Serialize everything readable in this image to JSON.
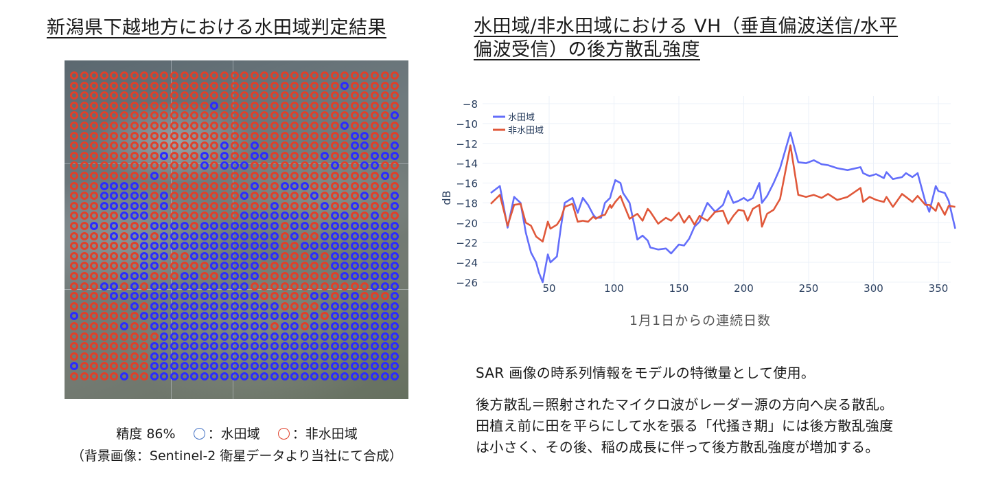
{
  "left_panel": {
    "title": "新潟県下越地方における水田域判定結果",
    "accuracy_label": "精度 86%",
    "legend": [
      {
        "symbol": "blue-circle",
        "color": "#4472c4",
        "label": "：水田域"
      },
      {
        "symbol": "red-circle",
        "color": "#e0402a",
        "label": "：非水田域"
      }
    ],
    "source": "（背景画像：Sentinel-2 衛星データより当社にて合成）",
    "map": {
      "paddy_color": "#2b2bff",
      "non_paddy_color": "#e0402a",
      "cols": 33,
      "rows": [
        "RRRRRRRRRRRRRRRRRRRRRRRRRRRRRRRRR",
        "RRRRRRRRRRRRRRRRRRRRRRRRRRRBRRRRR",
        "RRRRRRRRRRRRRRRRRRRRRRRRRRRRRRRRR",
        "RRRRRRRRRRRRRRBRRRRRRRRRRRRRRRRRR",
        "RRRRRRRRRRRRRRRRRRRRRRRRRRRRRRRRB",
        "RRRRRRRRRRRRRRRRRRRRRRRRRRRBRRRRR",
        "RRRRRRRRRRRRRRRRRRRRRRRRRRRRBBRRR",
        "RRRRRRRRRRRRRRRBRRBRRRRRRRRRBBRRB",
        "RRRRRRRRRBRRRBRBRRBBRRRRRBRRBRBBB",
        "RRRRRRRRRRRRRBRBBBRRRRRRRRBRRBBRR",
        "RRRRRRRRBRRRRRRRRRRRRRRRRRRRRRRBR",
        "RRRBBBBRRRRRRRRRRRBRRBBBRRRRRRRRR",
        "RRRBBBBBRBRRRRRRRBRRRRRRBRRRRBRRB",
        "RRRBBBBBRBRRRRRRRRRRBRRRRBRRBRRRB",
        "RRRRRBBBRRRRRRRRRBBBBBBBRRBBRRBRR",
        "RRBRBRRRBBBBRBBBBBBBBRBBRBBBBBBBB",
        "RRRRBRBBRBBBBBBBBBBBBRBRRBBBBBBBB",
        "RRRRRRRBBBBBBBBBBBBBBRRBBBBBBBBBB",
        "RRRRRRRBBBRRBBBBBBBBBRRRBRBBBBBBB",
        "RRRRRRRBBRRRRRBBBBBRRRRRRRBBBBBBB",
        "RRRRRBBBRRRBBRRBBBBRRRRRRRRBBBBBB",
        "RRRBBRBRBBBBBBBBBBRRRRRRRRRRRRBBB",
        "RRRRBBBBBBBBBBBBBBBRRRRRBBRBBRRRB",
        "RRRRRRBRBBBBBBBBBBBBBRRRRBBBBBBBB",
        "BRRRRRRBBBBBBBBBBBBBBBBRBRBBBBBBB",
        "RRRRRBRRBBBBBBBBBBBBRBBRBBBBBBBBB",
        "RRRRRRRRRBBBBBBBBBBBBBBBBBBBBBBBB",
        "RRRRRRRRBBBBBBBBBBBBBBBBBBBBBBBBB",
        "RRRRRRRRBBBBBBBBBBBBBBBBBBBBBBBBB",
        "BRRRRRRRBBBBBBBBBBBBBBBBBBBBBBBBB",
        "RRRRRBRRBBBBBBBBBBBBBBBBBBBBBBBBB"
      ]
    }
  },
  "right_panel": {
    "title_line1": "水田域/非水田域における VH（垂直偏波送信/水平",
    "title_line2": "偏波受信）の後方散乱強度",
    "xlabel": "1月1日からの連続日数",
    "paragraph1": "SAR 画像の時系列情報をモデルの特徴量として使用。",
    "paragraph2_lines": [
      "後方散乱＝照射されたマイクロ波がレーダー源の方向へ戻る散乱。",
      "田植え前に田を平らにして水を張る「代掻き期」には後方散乱強度",
      "は小さく、その後、稲の成長に伴って後方散乱強度が増加する。"
    ]
  },
  "chart_data": {
    "type": "line",
    "title": "水田域/非水田域における VH（垂直偏波送信/水平偏波受信）の後方散乱強度",
    "xlabel": "1月1日からの連続日数",
    "ylabel": "dB",
    "xlim": [
      5,
      363
    ],
    "ylim": [
      -26.5,
      -8
    ],
    "xticks": [
      50,
      100,
      150,
      200,
      250,
      300,
      350
    ],
    "yticks": [
      -8,
      -10,
      -12,
      -14,
      -16,
      -18,
      -20,
      -22,
      -24,
      -26
    ],
    "grid": true,
    "legend_position": "top-left",
    "series": [
      {
        "name": "水田域",
        "color": "#636efa",
        "x": [
          5,
          12,
          18,
          23,
          28,
          32,
          36,
          40,
          42,
          45,
          49,
          51,
          56,
          59,
          62,
          68,
          72,
          76,
          80,
          84,
          86,
          90,
          93,
          97,
          98,
          101,
          105,
          107,
          112,
          118,
          122,
          126,
          128,
          134,
          140,
          144,
          150,
          154,
          158,
          162,
          166,
          168,
          172,
          178,
          184,
          188,
          192,
          196,
          200,
          203,
          207,
          212,
          214,
          218,
          223,
          228,
          236,
          242,
          248,
          254,
          260,
          265,
          272,
          280,
          290,
          292,
          297,
          302,
          308,
          310,
          315,
          322,
          325,
          330,
          334,
          340,
          343,
          348,
          350,
          355,
          358,
          363
        ],
        "values": [
          -17.0,
          -16.3,
          -20.5,
          -17.4,
          -18.0,
          -21.0,
          -23.0,
          -24.0,
          -25.0,
          -26.0,
          -23.2,
          -24.0,
          -23.4,
          -20.5,
          -18.0,
          -17.5,
          -19.0,
          -17.5,
          -18.2,
          -19.2,
          -19.5,
          -19.5,
          -18.0,
          -17.5,
          -17.0,
          -15.7,
          -16.0,
          -17.0,
          -18.0,
          -21.7,
          -21.3,
          -21.8,
          -22.5,
          -22.7,
          -22.6,
          -23.1,
          -22.2,
          -22.3,
          -21.6,
          -20.4,
          -19.9,
          -19.2,
          -18.0,
          -18.9,
          -18.2,
          -16.8,
          -18.0,
          -17.8,
          -17.5,
          -17.8,
          -17.5,
          -16.0,
          -18.0,
          -17.3,
          -16.0,
          -14.5,
          -10.9,
          -13.9,
          -14.0,
          -13.7,
          -14.1,
          -14.2,
          -14.5,
          -14.7,
          -14.4,
          -15.0,
          -15.3,
          -15.1,
          -15.5,
          -14.9,
          -15.6,
          -15.4,
          -15.0,
          -15.4,
          -15.0,
          -17.9,
          -18.9,
          -16.3,
          -16.8,
          -17.0,
          -17.8,
          -20.6
        ]
      },
      {
        "name": "非水田域",
        "color": "#e0583a",
        "x": [
          5,
          12,
          18,
          23,
          28,
          32,
          36,
          40,
          42,
          45,
          49,
          51,
          56,
          59,
          62,
          68,
          72,
          76,
          80,
          84,
          86,
          90,
          93,
          97,
          98,
          101,
          105,
          107,
          112,
          118,
          122,
          126,
          128,
          134,
          140,
          144,
          150,
          154,
          158,
          162,
          166,
          168,
          172,
          178,
          184,
          188,
          192,
          196,
          200,
          203,
          207,
          212,
          214,
          218,
          223,
          228,
          236,
          242,
          248,
          254,
          260,
          265,
          272,
          280,
          290,
          292,
          297,
          302,
          308,
          310,
          315,
          322,
          325,
          330,
          334,
          340,
          343,
          348,
          350,
          355,
          358,
          363
        ],
        "values": [
          -18.1,
          -17.2,
          -20.3,
          -18.2,
          -18.1,
          -20.0,
          -20.3,
          -21.4,
          -21.6,
          -21.9,
          -19.9,
          -20.6,
          -20.2,
          -19.6,
          -18.4,
          -18.1,
          -19.9,
          -19.8,
          -19.9,
          -19.4,
          -19.6,
          -19.3,
          -19.2,
          -18.2,
          -18.5,
          -17.9,
          -17.3,
          -18.0,
          -19.6,
          -19.1,
          -19.8,
          -18.6,
          -18.9,
          -20.1,
          -19.5,
          -19.8,
          -19.0,
          -20.0,
          -19.3,
          -20.2,
          -19.3,
          -19.5,
          -19.8,
          -18.9,
          -18.8,
          -20.1,
          -19.3,
          -18.7,
          -18.8,
          -19.8,
          -18.6,
          -18.2,
          -20.4,
          -19.1,
          -18.7,
          -17.6,
          -12.2,
          -17.2,
          -17.4,
          -17.2,
          -17.5,
          -17.1,
          -17.7,
          -17.4,
          -16.5,
          -17.9,
          -17.4,
          -17.7,
          -17.9,
          -17.4,
          -18.4,
          -17.1,
          -17.4,
          -17.9,
          -17.3,
          -18.2,
          -18.2,
          -18.8,
          -18.0,
          -19.2,
          -18.3,
          -18.4
        ]
      }
    ]
  }
}
